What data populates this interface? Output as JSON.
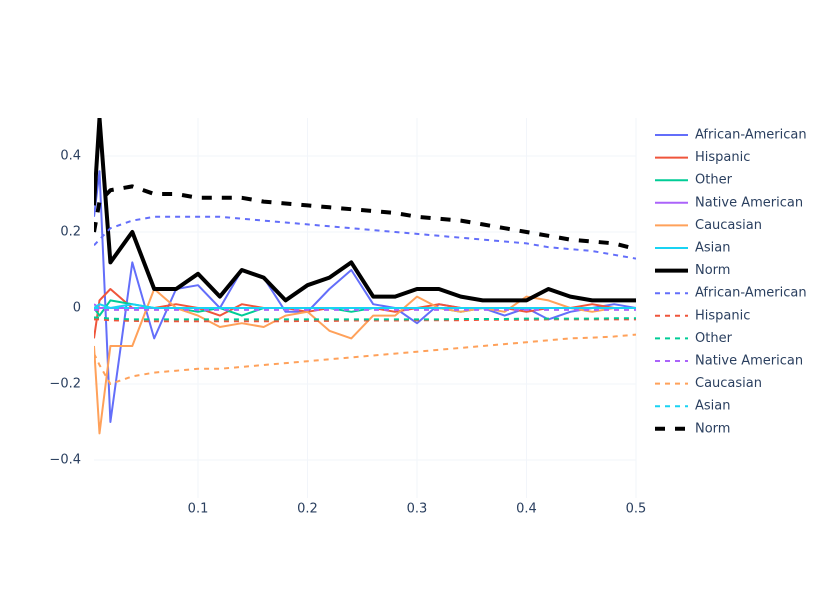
{
  "chart_data": {
    "type": "line",
    "x": [
      0.005,
      0.01,
      0.02,
      0.04,
      0.06,
      0.08,
      0.1,
      0.12,
      0.14,
      0.16,
      0.18,
      0.2,
      0.22,
      0.24,
      0.26,
      0.28,
      0.3,
      0.32,
      0.34,
      0.36,
      0.38,
      0.4,
      0.42,
      0.44,
      0.46,
      0.48,
      0.5
    ],
    "xlim": [
      0.005,
      0.5
    ],
    "ylim": [
      -0.5,
      0.5
    ],
    "xticks": [
      0.1,
      0.2,
      0.3,
      0.4,
      0.5
    ],
    "yticks": [
      {
        "value": -0.4,
        "label": "−0.4"
      },
      {
        "value": -0.2,
        "label": "−0.2"
      },
      0,
      0.2,
      0.4
    ],
    "grid": true,
    "legend": "right",
    "series": [
      {
        "name": "African-American",
        "color": "#636efa",
        "dash": "solid",
        "width": 2,
        "values": [
          0.24,
          0.36,
          -0.3,
          0.12,
          -0.08,
          0.05,
          0.06,
          0.0,
          0.1,
          0.08,
          -0.01,
          -0.01,
          0.05,
          0.1,
          0.01,
          0.0,
          -0.04,
          0.01,
          0.0,
          0.0,
          -0.02,
          0.0,
          -0.03,
          -0.01,
          0.0,
          0.01,
          0.0
        ]
      },
      {
        "name": "Hispanic",
        "color": "#ef553b",
        "dash": "solid",
        "width": 2,
        "values": [
          -0.08,
          0.02,
          0.05,
          0.0,
          0.0,
          0.01,
          0.0,
          -0.02,
          0.01,
          0.0,
          0.0,
          -0.01,
          0.0,
          0.0,
          0.0,
          -0.01,
          0.0,
          0.01,
          0.0,
          0.0,
          0.0,
          -0.01,
          0.0,
          0.0,
          0.01,
          0.0,
          0.0
        ]
      },
      {
        "name": "Other",
        "color": "#00cc96",
        "dash": "solid",
        "width": 2,
        "values": [
          0.0,
          -0.02,
          0.02,
          0.01,
          0.0,
          0.0,
          -0.01,
          0.0,
          -0.02,
          0.0,
          0.0,
          0.0,
          0.0,
          -0.01,
          0.0,
          0.0,
          0.0,
          0.0,
          -0.01,
          0.0,
          0.0,
          0.0,
          0.0,
          0.0,
          0.0,
          0.0,
          0.0
        ]
      },
      {
        "name": "Native American",
        "color": "#ab63fa",
        "dash": "solid",
        "width": 2,
        "values": [
          0.01,
          0.0,
          0.0,
          0.0,
          0.0,
          0.0,
          0.0,
          0.0,
          0.0,
          0.0,
          0.0,
          0.0,
          0.0,
          0.0,
          0.0,
          0.0,
          0.0,
          0.0,
          0.0,
          0.0,
          0.0,
          0.0,
          0.0,
          0.0,
          0.0,
          0.0,
          0.0
        ]
      },
      {
        "name": "Caucasian",
        "color": "#ffa15a",
        "dash": "solid",
        "width": 2,
        "values": [
          -0.1,
          -0.33,
          -0.1,
          -0.1,
          0.05,
          0.0,
          -0.02,
          -0.05,
          -0.04,
          -0.05,
          -0.02,
          -0.01,
          -0.06,
          -0.08,
          -0.02,
          -0.02,
          0.03,
          0.0,
          -0.01,
          0.0,
          -0.01,
          0.03,
          0.02,
          0.0,
          -0.01,
          0.0,
          0.0
        ]
      },
      {
        "name": "Asian",
        "color": "#19d3f3",
        "dash": "solid",
        "width": 2,
        "values": [
          0.0,
          0.01,
          0.0,
          0.01,
          0.0,
          0.0,
          0.0,
          0.0,
          0.0,
          0.0,
          0.0,
          0.0,
          0.0,
          0.0,
          0.0,
          0.0,
          0.0,
          0.0,
          0.0,
          0.0,
          0.0,
          0.0,
          0.0,
          0.0,
          0.0,
          0.0,
          0.0
        ]
      },
      {
        "name": "Norm",
        "color": "#000000",
        "dash": "solid",
        "width": 4,
        "values": [
          0.27,
          0.5,
          0.12,
          0.2,
          0.05,
          0.05,
          0.09,
          0.03,
          0.1,
          0.08,
          0.02,
          0.06,
          0.08,
          0.12,
          0.03,
          0.03,
          0.05,
          0.05,
          0.03,
          0.02,
          0.02,
          0.02,
          0.05,
          0.03,
          0.02,
          0.02,
          0.02
        ]
      },
      {
        "name": "African-American",
        "color": "#636efa",
        "dash": "dash",
        "width": 2,
        "values": [
          0.165,
          0.18,
          0.21,
          0.23,
          0.24,
          0.24,
          0.24,
          0.24,
          0.235,
          0.23,
          0.225,
          0.22,
          0.215,
          0.21,
          0.205,
          0.2,
          0.195,
          0.19,
          0.185,
          0.18,
          0.175,
          0.17,
          0.16,
          0.155,
          0.15,
          0.14,
          0.13
        ]
      },
      {
        "name": "Hispanic",
        "color": "#ef553b",
        "dash": "dash",
        "width": 2,
        "values": [
          -0.03,
          -0.03,
          -0.032,
          -0.034,
          -0.035,
          -0.035,
          -0.035,
          -0.035,
          -0.035,
          -0.035,
          -0.035,
          -0.034,
          -0.034,
          -0.033,
          -0.033,
          -0.033,
          -0.032,
          -0.032,
          -0.032,
          -0.031,
          -0.031,
          -0.031,
          -0.03,
          -0.03,
          -0.03,
          -0.03,
          -0.03
        ]
      },
      {
        "name": "Other",
        "color": "#00cc96",
        "dash": "dash",
        "width": 2,
        "values": [
          -0.025,
          -0.025,
          -0.028,
          -0.03,
          -0.03,
          -0.03,
          -0.03,
          -0.03,
          -0.03,
          -0.03,
          -0.03,
          -0.03,
          -0.03,
          -0.03,
          -0.03,
          -0.03,
          -0.03,
          -0.03,
          -0.029,
          -0.029,
          -0.029,
          -0.028,
          -0.028,
          -0.028,
          -0.028,
          -0.027,
          -0.027
        ]
      },
      {
        "name": "Native American",
        "color": "#ab63fa",
        "dash": "dash",
        "width": 2,
        "values": [
          -0.005,
          -0.005,
          -0.005,
          -0.005,
          -0.005,
          -0.005,
          -0.005,
          -0.005,
          -0.005,
          -0.005,
          -0.005,
          -0.005,
          -0.005,
          -0.005,
          -0.005,
          -0.005,
          -0.005,
          -0.005,
          -0.005,
          -0.005,
          -0.005,
          -0.005,
          -0.005,
          -0.005,
          -0.005,
          -0.005,
          -0.005
        ]
      },
      {
        "name": "Caucasian",
        "color": "#ffa15a",
        "dash": "dash",
        "width": 2,
        "values": [
          -0.12,
          -0.15,
          -0.2,
          -0.18,
          -0.17,
          -0.165,
          -0.16,
          -0.16,
          -0.155,
          -0.15,
          -0.145,
          -0.14,
          -0.135,
          -0.13,
          -0.125,
          -0.12,
          -0.115,
          -0.11,
          -0.105,
          -0.1,
          -0.095,
          -0.09,
          -0.085,
          -0.08,
          -0.078,
          -0.075,
          -0.07
        ]
      },
      {
        "name": "Asian",
        "color": "#19d3f3",
        "dash": "dash",
        "width": 2,
        "values": [
          0.0,
          0.0,
          0.0,
          0.0,
          0.0,
          0.0,
          0.0,
          0.0,
          0.0,
          0.0,
          0.0,
          0.0,
          0.0,
          0.0,
          0.0,
          0.0,
          0.0,
          0.0,
          0.0,
          0.0,
          0.0,
          0.0,
          0.0,
          0.0,
          0.0,
          0.0,
          0.0
        ]
      },
      {
        "name": "Norm",
        "color": "#000000",
        "dash": "dash",
        "width": 4,
        "values": [
          0.2,
          0.28,
          0.31,
          0.32,
          0.3,
          0.3,
          0.29,
          0.29,
          0.29,
          0.28,
          0.275,
          0.27,
          0.265,
          0.26,
          0.255,
          0.25,
          0.24,
          0.235,
          0.23,
          0.22,
          0.21,
          0.2,
          0.19,
          0.18,
          0.175,
          0.17,
          0.155
        ]
      }
    ]
  }
}
